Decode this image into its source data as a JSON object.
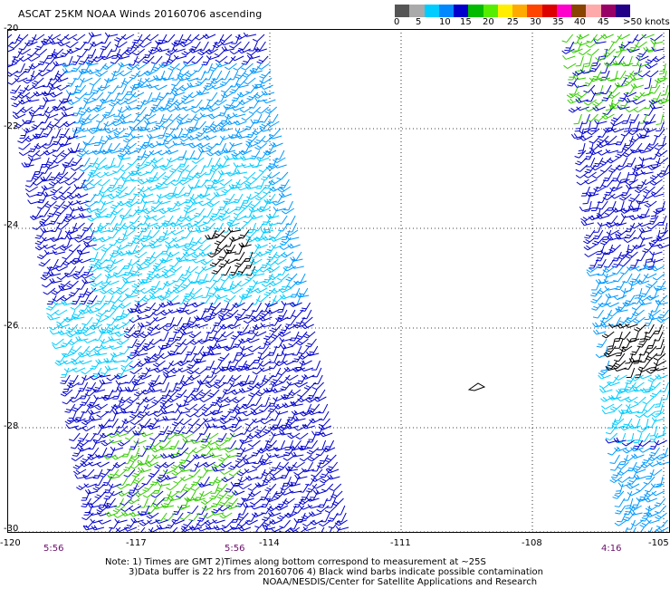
{
  "title": "ASCAT 25KM NOAA Winds 20160706 ascending",
  "scale": {
    "colors": [
      "#555555",
      "#aaaaaa",
      "#00ccff",
      "#0088ff",
      "#0000cc",
      "#00bb00",
      "#55ee00",
      "#ffee00",
      "#ffaa00",
      "#ff4400",
      "#dd0000",
      "#ff00cc",
      "#884400",
      "#ffaaaa",
      "#990066",
      "#220088"
    ],
    "labels": [
      "0",
      "5",
      "10",
      "15",
      "20",
      "25",
      "30",
      "35",
      "40",
      "45",
      ">50 knots"
    ]
  },
  "lat_labels": [
    "-20",
    "-22",
    "-24",
    "-26",
    "-28",
    "-30"
  ],
  "lon_labels": [
    "-120",
    "-117",
    "-114",
    "-111",
    "-108",
    "-105"
  ],
  "time_labels": [
    "5:56",
    "5:56",
    "4:16"
  ],
  "notes": {
    "line1": "Note: 1) Times are GMT 2)Times along bottom correspond to measurement at ~25S",
    "line2": "3)Data buffer is 22 hrs from 20160706 4) Black wind barbs indicate possible contamination",
    "line3": "NOAA/NESDIS/Center for Satellite Applications and Research"
  }
}
